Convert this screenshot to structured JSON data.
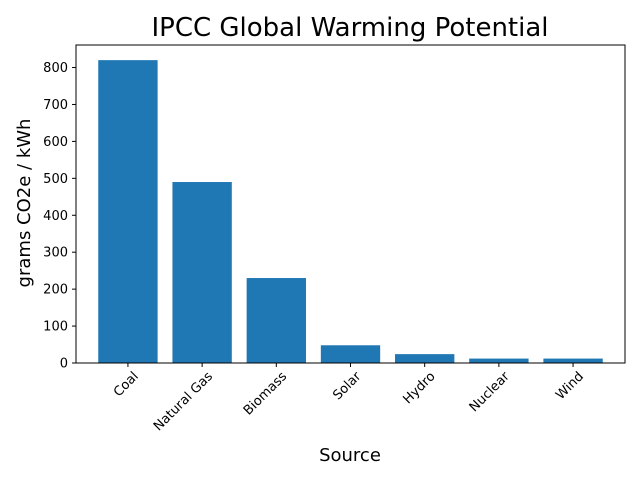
{
  "chart_data": {
    "type": "bar",
    "title": "IPCC Global Warming Potential",
    "xlabel": "Source",
    "ylabel": "grams CO2e / kWh",
    "categories": [
      "Coal",
      "Natural Gas",
      "Biomass",
      "Solar",
      "Hydro",
      "Nuclear",
      "Wind"
    ],
    "values": [
      820,
      490,
      230,
      48,
      24,
      12,
      12
    ],
    "ylim": [
      0,
      861
    ],
    "yticks": [
      0,
      100,
      200,
      300,
      400,
      500,
      600,
      700,
      800
    ],
    "bar_color": "#1f77b4",
    "grid": false,
    "legend": "none"
  }
}
